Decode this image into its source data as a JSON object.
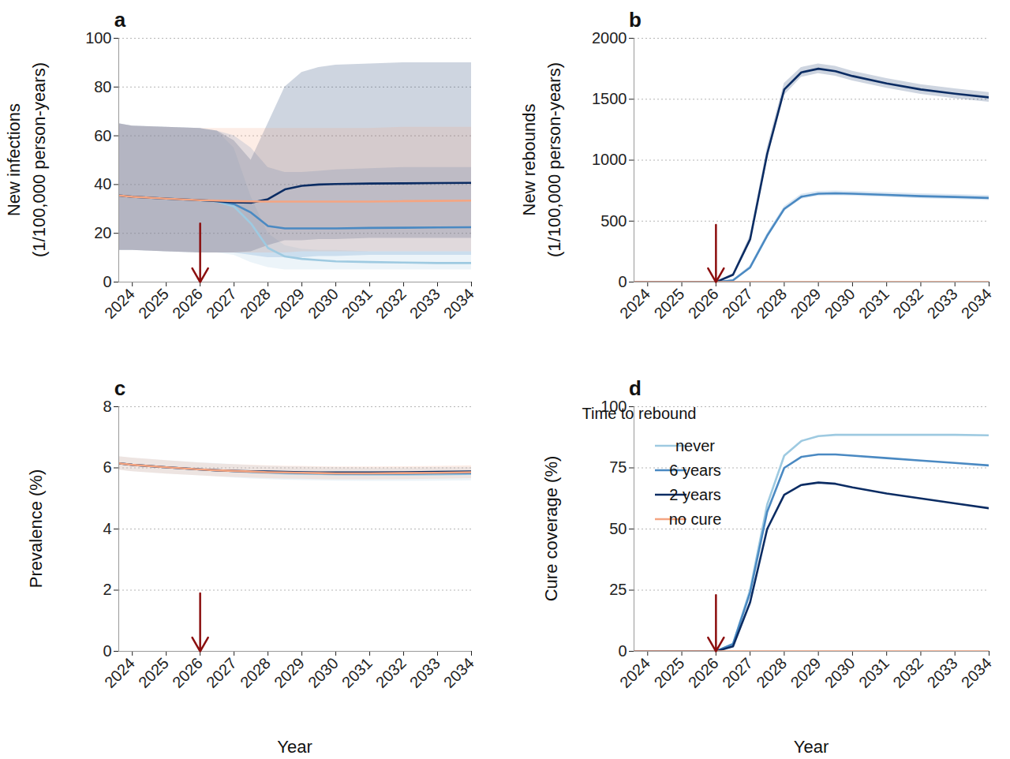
{
  "chart_data": [
    {
      "type": "line",
      "title": "a",
      "y_label": "New infections\n(1/100,000 person-years)",
      "grid": true,
      "x": [
        2023.6,
        2024,
        2025,
        2026,
        2026.5,
        2027,
        2027.5,
        2028,
        2028.5,
        2029,
        2029.5,
        2030,
        2031,
        2032,
        2033,
        2034
      ],
      "xlim": [
        2023.6,
        2034
      ],
      "xticks": [
        2024,
        2025,
        2026,
        2027,
        2028,
        2029,
        2030,
        2031,
        2032,
        2033,
        2034
      ],
      "ylim": [
        0,
        100
      ],
      "yticks": [
        0,
        20,
        40,
        60,
        80,
        100
      ],
      "arrow_x": 2026,
      "arrow_from": 24,
      "arrow_to": 0,
      "series": [
        {
          "name": "never",
          "color": "#9ecae1",
          "values": [
            35.5,
            35,
            34.2,
            33.6,
            33,
            31,
            24,
            14,
            10.5,
            9.5,
            9,
            8.5,
            8.2,
            8,
            7.8,
            7.8
          ],
          "lower": [
            13,
            13,
            12.5,
            12,
            12,
            11,
            8,
            6,
            5,
            5,
            5,
            5,
            5,
            5,
            5,
            5
          ],
          "upper": [
            65,
            64,
            63.5,
            63,
            62,
            55,
            35,
            20,
            15,
            13.5,
            13,
            13,
            12.5,
            12.5,
            12.5,
            12.5
          ]
        },
        {
          "name": "6 years",
          "color": "#4a89c2",
          "values": [
            35.5,
            35,
            34.2,
            33.6,
            33.2,
            32,
            28.5,
            23,
            22,
            22,
            22,
            22,
            22.2,
            22.3,
            22.4,
            22.5
          ],
          "lower": [
            13,
            13,
            12.5,
            12,
            12,
            12,
            11,
            10,
            10,
            10,
            10.5,
            10.5,
            11,
            11,
            11,
            11
          ],
          "upper": [
            65,
            64,
            63.5,
            63,
            62,
            60,
            55,
            47,
            45,
            45,
            45.5,
            46,
            46.5,
            47,
            47,
            47
          ]
        },
        {
          "name": "2 years",
          "color": "#0b2c63",
          "values": [
            35.5,
            35,
            34.2,
            33.6,
            33.2,
            32.7,
            32.5,
            34,
            38,
            39.5,
            40,
            40.2,
            40.4,
            40.5,
            40.6,
            40.7
          ],
          "lower": [
            13,
            13,
            12.5,
            12,
            12,
            12,
            12.5,
            15,
            17,
            17,
            17.5,
            17.5,
            18,
            18,
            18,
            18
          ],
          "upper": [
            65,
            64,
            63.5,
            63,
            62,
            58,
            50,
            65,
            80,
            86,
            88,
            89,
            89.5,
            90,
            90,
            90
          ]
        },
        {
          "name": "no cure",
          "color": "#f4a582",
          "values": [
            35.5,
            35,
            34.2,
            33.6,
            33.4,
            33.2,
            33.1,
            33,
            33,
            33,
            33,
            33,
            33,
            33.2,
            33.3,
            33.4
          ],
          "lower": [
            13,
            13,
            12.5,
            12,
            12,
            12,
            12,
            12,
            12,
            12.5,
            12.5,
            12.5,
            12.5,
            12.5,
            12.5,
            12.5
          ],
          "upper": [
            65,
            64,
            63.5,
            63,
            63,
            63,
            63,
            63,
            63,
            63,
            63,
            63,
            63,
            63.5,
            63.5,
            63.5
          ]
        }
      ]
    },
    {
      "type": "line",
      "title": "b",
      "y_label": "New rebounds\n(1/100,000 person-years)",
      "grid": true,
      "x": [
        2023.6,
        2024,
        2025,
        2026,
        2026.5,
        2027,
        2027.5,
        2028,
        2028.5,
        2029,
        2029.5,
        2030,
        2031,
        2032,
        2033,
        2034
      ],
      "xlim": [
        2023.6,
        2034
      ],
      "xticks": [
        2024,
        2025,
        2026,
        2027,
        2028,
        2029,
        2030,
        2031,
        2032,
        2033,
        2034
      ],
      "ylim": [
        0,
        2000
      ],
      "yticks": [
        0,
        500,
        1000,
        1500,
        2000
      ],
      "arrow_x": 2026,
      "arrow_from": 470,
      "arrow_to": 0,
      "series": [
        {
          "name": "never",
          "color": "#9ecae1",
          "values": [
            0,
            0,
            0,
            0,
            0,
            0,
            0,
            0,
            0,
            0,
            0,
            0,
            0,
            0,
            0,
            0
          ]
        },
        {
          "name": "6 years",
          "color": "#4a89c2",
          "values": [
            0,
            0,
            0,
            0,
            15,
            120,
            380,
            600,
            700,
            725,
            728,
            725,
            715,
            705,
            698,
            690
          ],
          "lower": [
            0,
            0,
            0,
            0,
            10,
            105,
            360,
            580,
            680,
            705,
            708,
            705,
            695,
            685,
            678,
            670
          ],
          "upper": [
            0,
            0,
            0,
            0,
            20,
            135,
            400,
            620,
            720,
            745,
            748,
            745,
            735,
            725,
            718,
            710
          ]
        },
        {
          "name": "2 years",
          "color": "#0b2c63",
          "values": [
            0,
            0,
            0,
            0,
            60,
            350,
            1050,
            1580,
            1720,
            1750,
            1730,
            1690,
            1630,
            1580,
            1545,
            1515
          ],
          "lower": [
            0,
            0,
            0,
            0,
            50,
            320,
            1000,
            1530,
            1680,
            1710,
            1690,
            1650,
            1590,
            1540,
            1505,
            1475
          ],
          "upper": [
            0,
            0,
            0,
            0,
            70,
            380,
            1100,
            1630,
            1760,
            1790,
            1770,
            1730,
            1670,
            1620,
            1585,
            1555
          ]
        },
        {
          "name": "no cure",
          "color": "#f4a582",
          "values": [
            0,
            0,
            0,
            0,
            0,
            0,
            0,
            0,
            0,
            0,
            0,
            0,
            0,
            0,
            0,
            0
          ]
        }
      ]
    },
    {
      "type": "line",
      "title": "c",
      "y_label": "Prevalence (%)",
      "x_label": "Year",
      "grid": true,
      "x": [
        2023.6,
        2024,
        2025,
        2026,
        2026.5,
        2027,
        2027.5,
        2028,
        2028.5,
        2029,
        2029.5,
        2030,
        2031,
        2032,
        2033,
        2034
      ],
      "xlim": [
        2023.6,
        2034
      ],
      "xticks": [
        2024,
        2025,
        2026,
        2027,
        2028,
        2029,
        2030,
        2031,
        2032,
        2033,
        2034
      ],
      "ylim": [
        0,
        8
      ],
      "yticks": [
        0,
        2,
        4,
        6,
        8
      ],
      "arrow_x": 2026,
      "arrow_from": 1.9,
      "arrow_to": 0,
      "series": [
        {
          "name": "never",
          "color": "#9ecae1",
          "values": [
            6.15,
            6.1,
            6.02,
            5.95,
            5.92,
            5.89,
            5.86,
            5.84,
            5.82,
            5.81,
            5.8,
            5.79,
            5.78,
            5.78,
            5.79,
            5.8
          ],
          "lower": [
            5.93,
            5.88,
            5.8,
            5.74,
            5.71,
            5.67,
            5.64,
            5.62,
            5.6,
            5.59,
            5.58,
            5.57,
            5.56,
            5.56,
            5.57,
            5.58
          ],
          "upper": [
            6.37,
            6.32,
            6.24,
            6.17,
            6.14,
            6.11,
            6.08,
            6.06,
            6.04,
            6.03,
            6.02,
            6.01,
            6.0,
            6.0,
            6.01,
            6.02
          ]
        },
        {
          "name": "6 years",
          "color": "#4a89c2",
          "values": [
            6.15,
            6.1,
            6.02,
            5.95,
            5.92,
            5.9,
            5.87,
            5.85,
            5.84,
            5.83,
            5.82,
            5.81,
            5.81,
            5.81,
            5.82,
            5.83
          ]
        },
        {
          "name": "2 years",
          "color": "#0b2c63",
          "values": [
            6.15,
            6.1,
            6.02,
            5.95,
            5.92,
            5.9,
            5.89,
            5.88,
            5.87,
            5.86,
            5.85,
            5.85,
            5.85,
            5.86,
            5.87,
            5.88
          ]
        },
        {
          "name": "no cure",
          "color": "#f4a582",
          "values": [
            6.15,
            6.1,
            6.02,
            5.95,
            5.92,
            5.9,
            5.88,
            5.86,
            5.85,
            5.84,
            5.83,
            5.82,
            5.82,
            5.83,
            5.84,
            5.86
          ],
          "lower": [
            5.93,
            5.88,
            5.8,
            5.74,
            5.71,
            5.69,
            5.67,
            5.65,
            5.64,
            5.63,
            5.62,
            5.61,
            5.61,
            5.62,
            5.63,
            5.65
          ],
          "upper": [
            6.37,
            6.32,
            6.24,
            6.16,
            6.13,
            6.11,
            6.09,
            6.07,
            6.06,
            6.05,
            6.04,
            6.03,
            6.03,
            6.04,
            6.05,
            6.07
          ]
        }
      ]
    },
    {
      "type": "line",
      "title": "d",
      "y_label": "Cure coverage (%)",
      "x_label": "Year",
      "grid": true,
      "legend": "top-left",
      "legend_title": "Time to rebound",
      "x": [
        2023.6,
        2024,
        2025,
        2026,
        2026.5,
        2027,
        2027.5,
        2028,
        2028.5,
        2029,
        2029.5,
        2030,
        2031,
        2032,
        2033,
        2034
      ],
      "xlim": [
        2023.6,
        2034
      ],
      "xticks": [
        2024,
        2025,
        2026,
        2027,
        2028,
        2029,
        2030,
        2031,
        2032,
        2033,
        2034
      ],
      "ylim": [
        0,
        100
      ],
      "yticks": [
        0,
        25,
        50,
        75,
        100
      ],
      "arrow_x": 2026,
      "arrow_from": 23,
      "arrow_to": 0,
      "series": [
        {
          "name": "never",
          "color": "#9ecae1",
          "values": [
            0,
            0,
            0,
            0,
            3,
            25,
            60,
            80,
            86,
            88,
            88.5,
            88.5,
            88.5,
            88.5,
            88.5,
            88.3
          ]
        },
        {
          "name": "6 years",
          "color": "#4a89c2",
          "values": [
            0,
            0,
            0,
            0,
            3,
            24,
            57,
            75,
            79.5,
            80.5,
            80.5,
            80,
            79,
            78,
            77,
            76
          ]
        },
        {
          "name": "2 years",
          "color": "#0b2c63",
          "values": [
            0,
            0,
            0,
            0,
            2,
            20,
            50,
            64,
            68,
            69,
            68.5,
            67,
            64.5,
            62.5,
            60.5,
            58.5
          ]
        },
        {
          "name": "no cure",
          "color": "#f4a582",
          "values": [
            0,
            0,
            0,
            0,
            0,
            0,
            0,
            0,
            0,
            0,
            0,
            0,
            0,
            0,
            0,
            0
          ]
        }
      ]
    }
  ]
}
